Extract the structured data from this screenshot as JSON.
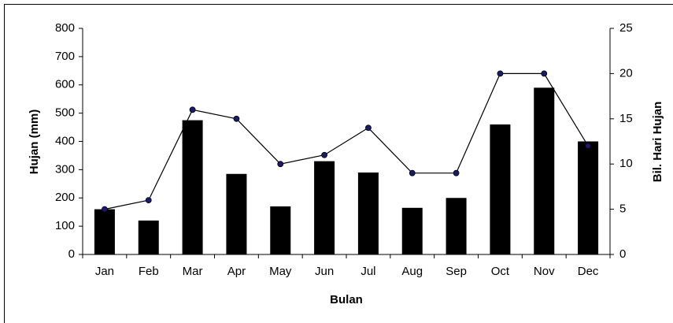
{
  "chart_data": {
    "type": "bar-line",
    "categories": [
      "Jan",
      "Feb",
      "Mar",
      "Apr",
      "May",
      "Jun",
      "Jul",
      "Aug",
      "Sep",
      "Oct",
      "Nov",
      "Dec"
    ],
    "series": [
      {
        "name": "Hujan (mm)",
        "type": "bar",
        "color": "#000000",
        "values": [
          160,
          120,
          475,
          285,
          170,
          330,
          290,
          165,
          200,
          460,
          590,
          400
        ]
      },
      {
        "name": "Bil. Hari Hujan",
        "type": "line",
        "axis": "y2",
        "color": "#000000",
        "marker_color": "#1a1a6e",
        "values": [
          5,
          6,
          16,
          15,
          10,
          11,
          14,
          9,
          9,
          20,
          20,
          12
        ]
      }
    ],
    "x_label": "Bulan",
    "y_label": "Hujan (mm)",
    "y2_label": "Bil. Hari Hujan",
    "ylim": [
      0,
      800
    ],
    "yticks": [
      0,
      100,
      200,
      300,
      400,
      500,
      600,
      700,
      800
    ],
    "y2lim": [
      0,
      25
    ],
    "y2ticks": [
      0,
      5,
      10,
      15,
      20,
      25
    ]
  }
}
